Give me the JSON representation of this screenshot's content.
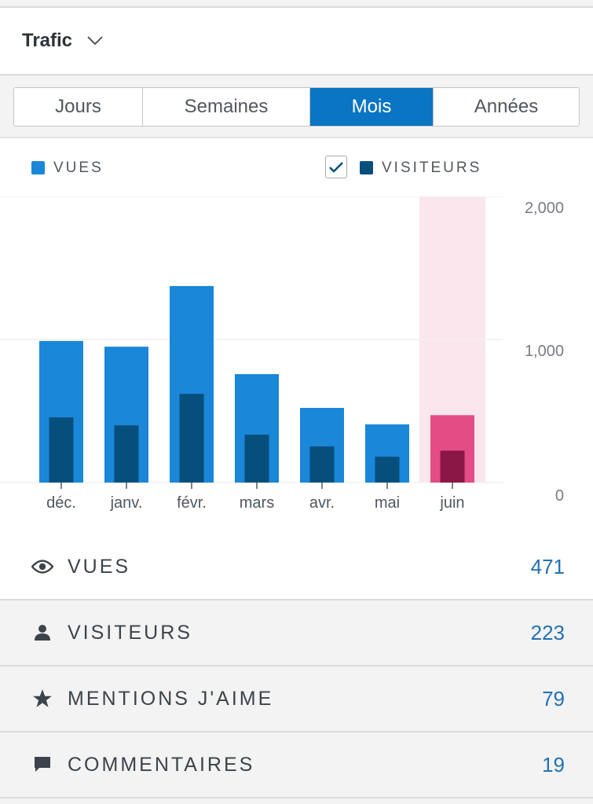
{
  "header": {
    "title": "Trafic"
  },
  "periods": [
    {
      "label": "Jours"
    },
    {
      "label": "Semaines"
    },
    {
      "label": "Mois",
      "active": true
    },
    {
      "label": "Années"
    }
  ],
  "legend": {
    "views": "VUES",
    "visitors": "VISITEURS",
    "visitors_checked": true
  },
  "colors": {
    "views": "#1a87d8",
    "visitors": "#064f7d",
    "highlight_views": "#e34c84",
    "highlight_visitors": "#8a1746",
    "highlight_bg": "#fbe6ee"
  },
  "chart_data": {
    "type": "bar",
    "categories": [
      "déc.",
      "janv.",
      "févr.",
      "mars",
      "avr.",
      "mai",
      "juin"
    ],
    "series": [
      {
        "name": "VUES",
        "values": [
          990,
          950,
          1374,
          758,
          522,
          407,
          471
        ]
      },
      {
        "name": "VISITEURS",
        "values": [
          456,
          400,
          620,
          335,
          253,
          181,
          223
        ]
      }
    ],
    "yticks": [
      "0",
      "1,000",
      "2,000"
    ],
    "ytick_values": [
      0,
      1000,
      2000
    ],
    "ylim": [
      0,
      2000
    ],
    "highlighted": "juin",
    "grid": true
  },
  "stats": [
    {
      "label": "VUES",
      "value": "471",
      "icon": "eye-icon"
    },
    {
      "label": "VISITEURS",
      "value": "223",
      "icon": "person-icon"
    },
    {
      "label": "MENTIONS J'AIME",
      "value": "79",
      "icon": "star-icon"
    },
    {
      "label": "COMMENTAIRES",
      "value": "19",
      "icon": "comment-icon"
    }
  ]
}
